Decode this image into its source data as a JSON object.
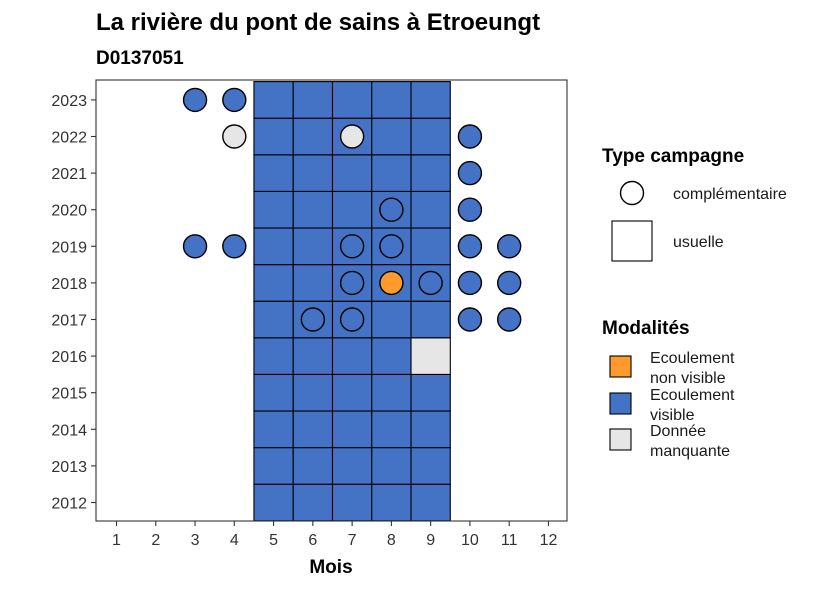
{
  "colors": {
    "visible": "#4472C4",
    "non_visible": "#FF9A2E",
    "missing": "#E6E6E6"
  },
  "chart_data": {
    "type": "tile",
    "title": "La rivière du pont de sains à Etroeungt",
    "subtitle": "D0137051",
    "xlabel": "Mois",
    "ylabel": "",
    "x_ticks": [
      "1",
      "2",
      "3",
      "4",
      "5",
      "6",
      "7",
      "8",
      "9",
      "10",
      "11",
      "12"
    ],
    "y_ticks": [
      "2012",
      "2013",
      "2014",
      "2015",
      "2016",
      "2017",
      "2018",
      "2019",
      "2020",
      "2021",
      "2022",
      "2023"
    ],
    "legend_shape": {
      "title": "Type campagne",
      "items": [
        {
          "key": "complementaire",
          "label": "complémentaire",
          "shape": "circle"
        },
        {
          "key": "usuelle",
          "label": "usuelle",
          "shape": "square"
        }
      ]
    },
    "legend_fill": {
      "title": "Modalités",
      "items": [
        {
          "key": "non_visible",
          "label_lines": [
            "Ecoulement",
            "non visible"
          ]
        },
        {
          "key": "visible",
          "label_lines": [
            "Ecoulement",
            "visible"
          ]
        },
        {
          "key": "missing",
          "label_lines": [
            "Donnée",
            "manquante"
          ]
        }
      ]
    },
    "usuelle": [
      {
        "year": 2012,
        "month": 5,
        "v": "visible"
      },
      {
        "year": 2012,
        "month": 6,
        "v": "visible"
      },
      {
        "year": 2012,
        "month": 7,
        "v": "visible"
      },
      {
        "year": 2012,
        "month": 8,
        "v": "visible"
      },
      {
        "year": 2012,
        "month": 9,
        "v": "visible"
      },
      {
        "year": 2013,
        "month": 5,
        "v": "visible"
      },
      {
        "year": 2013,
        "month": 6,
        "v": "visible"
      },
      {
        "year": 2013,
        "month": 7,
        "v": "visible"
      },
      {
        "year": 2013,
        "month": 8,
        "v": "visible"
      },
      {
        "year": 2013,
        "month": 9,
        "v": "visible"
      },
      {
        "year": 2014,
        "month": 5,
        "v": "visible"
      },
      {
        "year": 2014,
        "month": 6,
        "v": "visible"
      },
      {
        "year": 2014,
        "month": 7,
        "v": "visible"
      },
      {
        "year": 2014,
        "month": 8,
        "v": "visible"
      },
      {
        "year": 2014,
        "month": 9,
        "v": "visible"
      },
      {
        "year": 2015,
        "month": 5,
        "v": "visible"
      },
      {
        "year": 2015,
        "month": 6,
        "v": "visible"
      },
      {
        "year": 2015,
        "month": 7,
        "v": "visible"
      },
      {
        "year": 2015,
        "month": 8,
        "v": "visible"
      },
      {
        "year": 2015,
        "month": 9,
        "v": "visible"
      },
      {
        "year": 2016,
        "month": 5,
        "v": "visible"
      },
      {
        "year": 2016,
        "month": 6,
        "v": "visible"
      },
      {
        "year": 2016,
        "month": 7,
        "v": "visible"
      },
      {
        "year": 2016,
        "month": 8,
        "v": "visible"
      },
      {
        "year": 2016,
        "month": 9,
        "v": "missing"
      },
      {
        "year": 2017,
        "month": 5,
        "v": "visible"
      },
      {
        "year": 2017,
        "month": 6,
        "v": "visible"
      },
      {
        "year": 2017,
        "month": 7,
        "v": "visible"
      },
      {
        "year": 2017,
        "month": 8,
        "v": "visible"
      },
      {
        "year": 2017,
        "month": 9,
        "v": "visible"
      },
      {
        "year": 2018,
        "month": 5,
        "v": "visible"
      },
      {
        "year": 2018,
        "month": 6,
        "v": "visible"
      },
      {
        "year": 2018,
        "month": 7,
        "v": "visible"
      },
      {
        "year": 2018,
        "month": 8,
        "v": "visible"
      },
      {
        "year": 2018,
        "month": 9,
        "v": "visible"
      },
      {
        "year": 2019,
        "month": 5,
        "v": "visible"
      },
      {
        "year": 2019,
        "month": 6,
        "v": "visible"
      },
      {
        "year": 2019,
        "month": 7,
        "v": "visible"
      },
      {
        "year": 2019,
        "month": 8,
        "v": "visible"
      },
      {
        "year": 2019,
        "month": 9,
        "v": "visible"
      },
      {
        "year": 2020,
        "month": 5,
        "v": "visible"
      },
      {
        "year": 2020,
        "month": 6,
        "v": "visible"
      },
      {
        "year": 2020,
        "month": 7,
        "v": "visible"
      },
      {
        "year": 2020,
        "month": 8,
        "v": "visible"
      },
      {
        "year": 2020,
        "month": 9,
        "v": "visible"
      },
      {
        "year": 2021,
        "month": 5,
        "v": "visible"
      },
      {
        "year": 2021,
        "month": 6,
        "v": "visible"
      },
      {
        "year": 2021,
        "month": 7,
        "v": "visible"
      },
      {
        "year": 2021,
        "month": 8,
        "v": "visible"
      },
      {
        "year": 2021,
        "month": 9,
        "v": "visible"
      },
      {
        "year": 2022,
        "month": 5,
        "v": "visible"
      },
      {
        "year": 2022,
        "month": 6,
        "v": "visible"
      },
      {
        "year": 2022,
        "month": 7,
        "v": "visible"
      },
      {
        "year": 2022,
        "month": 8,
        "v": "visible"
      },
      {
        "year": 2022,
        "month": 9,
        "v": "visible"
      },
      {
        "year": 2023,
        "month": 5,
        "v": "visible"
      },
      {
        "year": 2023,
        "month": 6,
        "v": "visible"
      },
      {
        "year": 2023,
        "month": 7,
        "v": "visible"
      },
      {
        "year": 2023,
        "month": 8,
        "v": "visible"
      },
      {
        "year": 2023,
        "month": 9,
        "v": "visible"
      }
    ],
    "complementaire": [
      {
        "year": 2023,
        "month": 3,
        "v": "visible"
      },
      {
        "year": 2023,
        "month": 4,
        "v": "visible"
      },
      {
        "year": 2022,
        "month": 4,
        "v": "missing"
      },
      {
        "year": 2022,
        "month": 7,
        "v": "missing"
      },
      {
        "year": 2022,
        "month": 10,
        "v": "visible"
      },
      {
        "year": 2021,
        "month": 10,
        "v": "visible"
      },
      {
        "year": 2020,
        "month": 8,
        "v": "visible"
      },
      {
        "year": 2020,
        "month": 10,
        "v": "visible"
      },
      {
        "year": 2019,
        "month": 3,
        "v": "visible"
      },
      {
        "year": 2019,
        "month": 4,
        "v": "visible"
      },
      {
        "year": 2019,
        "month": 7,
        "v": "visible"
      },
      {
        "year": 2019,
        "month": 8,
        "v": "visible"
      },
      {
        "year": 2019,
        "month": 10,
        "v": "visible"
      },
      {
        "year": 2019,
        "month": 11,
        "v": "visible"
      },
      {
        "year": 2018,
        "month": 7,
        "v": "visible"
      },
      {
        "year": 2018,
        "month": 8,
        "v": "non_visible"
      },
      {
        "year": 2018,
        "month": 9,
        "v": "visible"
      },
      {
        "year": 2018,
        "month": 10,
        "v": "visible"
      },
      {
        "year": 2018,
        "month": 11,
        "v": "visible"
      },
      {
        "year": 2017,
        "month": 6,
        "v": "visible"
      },
      {
        "year": 2017,
        "month": 7,
        "v": "visible"
      },
      {
        "year": 2017,
        "month": 10,
        "v": "visible"
      },
      {
        "year": 2017,
        "month": 11,
        "v": "visible"
      }
    ]
  }
}
